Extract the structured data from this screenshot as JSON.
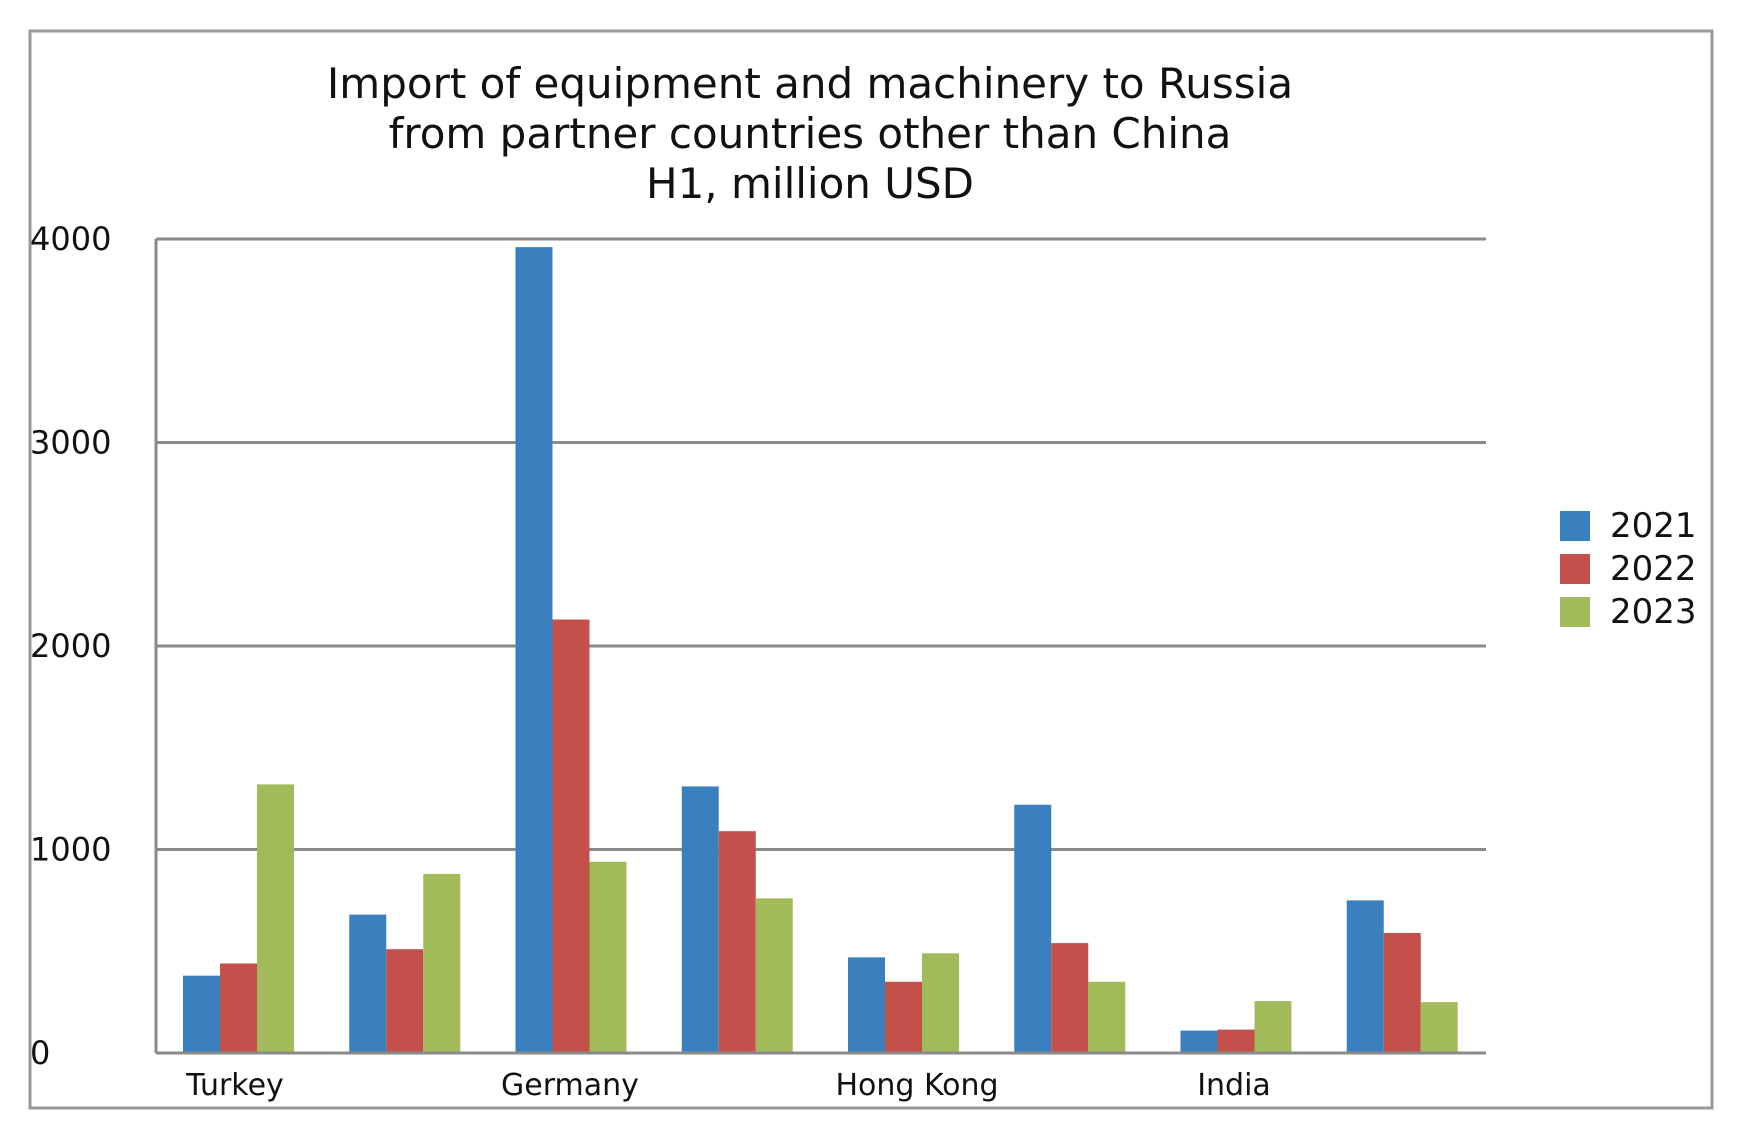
{
  "chart_data": {
    "type": "bar",
    "title": [
      "Import of equipment and machinery to Russia",
      "from partner countries other than China",
      "H1, million USD"
    ],
    "xlabel": "",
    "ylabel": "",
    "ylim": [
      0,
      4000
    ],
    "yticks": [
      0,
      1000,
      2000,
      3000,
      4000
    ],
    "category_labels": [
      "Turkey",
      "",
      "Germany",
      "",
      "Hong Kong",
      "",
      "India",
      ""
    ],
    "series": [
      {
        "name": "2021",
        "color": "#3b80be",
        "values": [
          380,
          680,
          3960,
          1310,
          470,
          1220,
          110,
          750
        ]
      },
      {
        "name": "2022",
        "color": "#c4504c",
        "values": [
          440,
          510,
          2130,
          1090,
          350,
          540,
          115,
          590
        ]
      },
      {
        "name": "2023",
        "color": "#a1bb5a",
        "values": [
          1320,
          880,
          940,
          760,
          490,
          350,
          255,
          250
        ]
      }
    ],
    "grid": true,
    "legend": "right"
  }
}
